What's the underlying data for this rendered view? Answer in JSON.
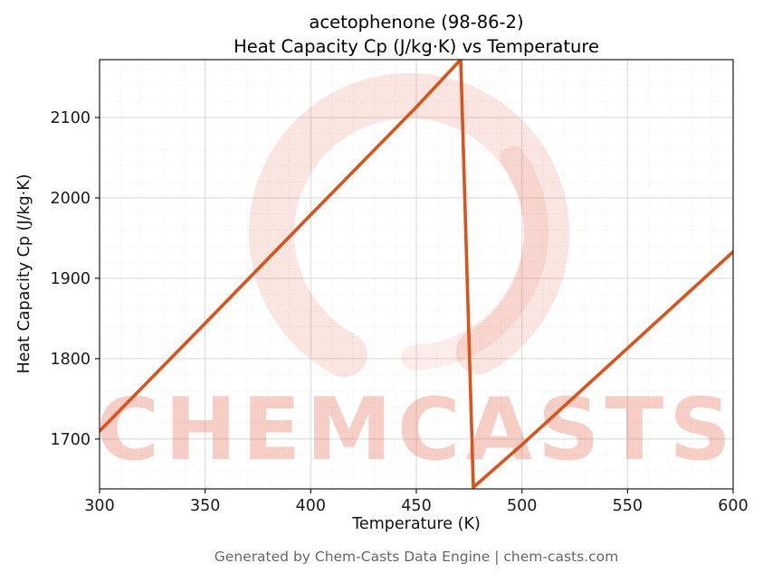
{
  "figure": {
    "title_line1": "acetophenone (98-86-2)",
    "title_line2": "Heat Capacity Cp (J/kg·K) vs Temperature",
    "footer": "Generated by Chem-Casts Data Engine | chem-casts.com"
  },
  "watermark": {
    "text": "CHEMCASTS",
    "color": "#dd4f2e",
    "text_opacity": 0.28,
    "ring_opacity": 0.15
  },
  "chart_data": {
    "type": "line",
    "title": "acetophenone (98-86-2) Heat Capacity Cp (J/kg·K) vs Temperature",
    "xlabel": "Temperature (K)",
    "ylabel": "Heat Capacity Cp (J/kg·K)",
    "xlim": [
      300,
      600
    ],
    "ylim": [
      1638,
      2172
    ],
    "xticks": [
      300,
      350,
      400,
      450,
      500,
      550,
      600
    ],
    "yticks": [
      1700,
      1800,
      1900,
      2000,
      2100
    ],
    "grid": true,
    "legend": false,
    "line_color": "#d9531b",
    "line_width": 3.6,
    "series": [
      {
        "name": "Heat Capacity Cp",
        "x": [
          300,
          350,
          400,
          450,
          471,
          477,
          500,
          550,
          600
        ],
        "y": [
          1710,
          1844,
          1979,
          2113,
          2172,
          1640,
          1693,
          1813,
          1933
        ]
      }
    ],
    "annotations": {
      "peak_temperature_K": 471,
      "peak_cp": 2172,
      "post_drop_min_cp": 1640
    }
  }
}
